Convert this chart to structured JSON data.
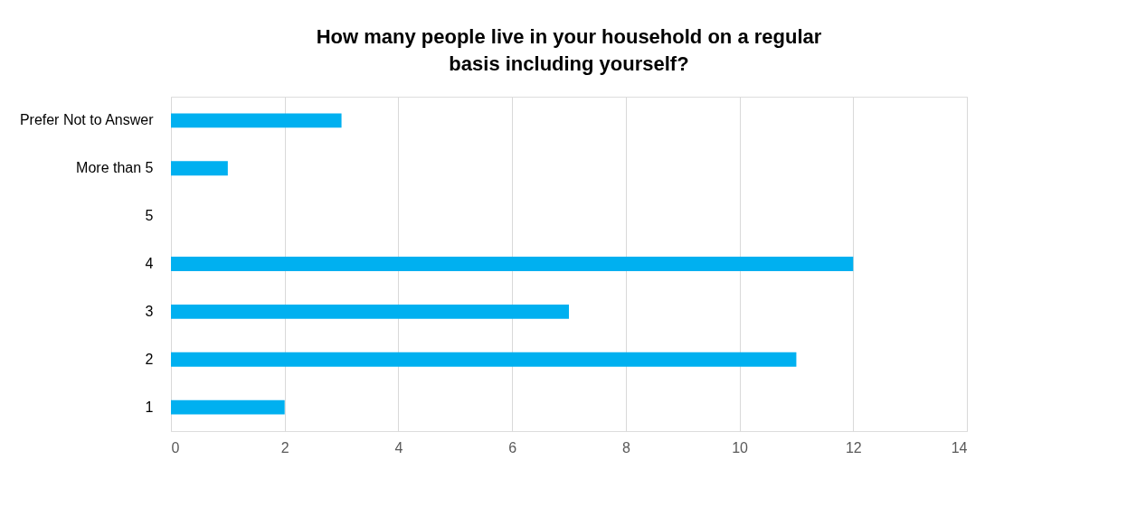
{
  "chart_data": {
    "type": "bar",
    "orientation": "horizontal",
    "title": "How many people live in your household on a regular basis including yourself?",
    "categories": [
      "Prefer Not to Answer",
      "More than 5",
      "5",
      "4",
      "3",
      "2",
      "1"
    ],
    "values": [
      3,
      1,
      0,
      12,
      7,
      11,
      2
    ],
    "color": "#00b0f0",
    "xlim": [
      0,
      14
    ],
    "xticks": [
      0,
      2,
      4,
      6,
      8,
      10,
      12,
      14
    ],
    "grid": "x"
  }
}
